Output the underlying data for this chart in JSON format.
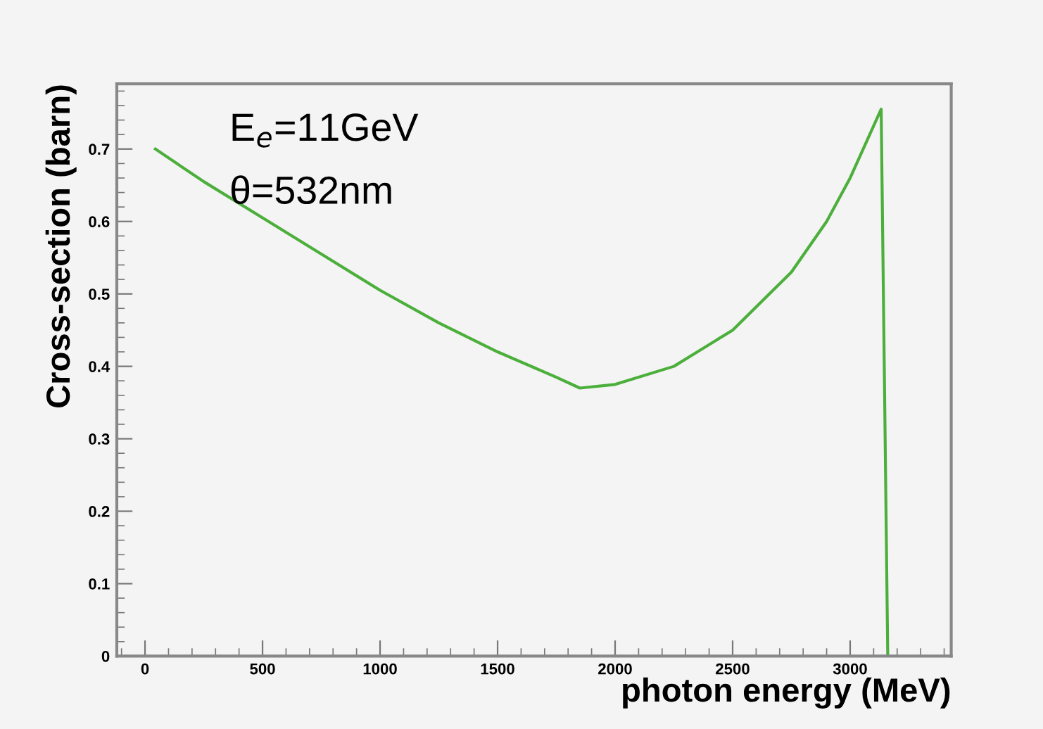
{
  "chart_data": {
    "type": "line",
    "xlabel": "photon energy (MeV)",
    "ylabel": "Cross-section (barn)",
    "annotations": [
      "E$_{e}$=11GeV",
      "θ=532nm"
    ],
    "series": [
      {
        "color": "#4caf3c",
        "x": [
          44,
          250,
          500,
          750,
          1000,
          1250,
          1500,
          1750,
          1850,
          2000,
          2250,
          2500,
          2750,
          2900,
          3000,
          3132,
          3160
        ],
        "values": [
          0.7,
          0.655,
          0.605,
          0.555,
          0.505,
          0.46,
          0.42,
          0.385,
          0.37,
          0.375,
          0.4,
          0.45,
          0.53,
          0.6,
          0.66,
          0.755,
          0
        ]
      }
    ],
    "xlim": [
      -120,
      3430
    ],
    "ylim": [
      0,
      0.79
    ],
    "xticks": [
      0,
      500,
      1000,
      1500,
      2000,
      2500,
      3000
    ],
    "yticks": [
      0,
      0.1,
      0.2,
      0.3,
      0.4,
      0.5,
      0.6,
      0.7
    ],
    "grid": false,
    "legend": false,
    "marker": "none",
    "line_style": "solid"
  }
}
